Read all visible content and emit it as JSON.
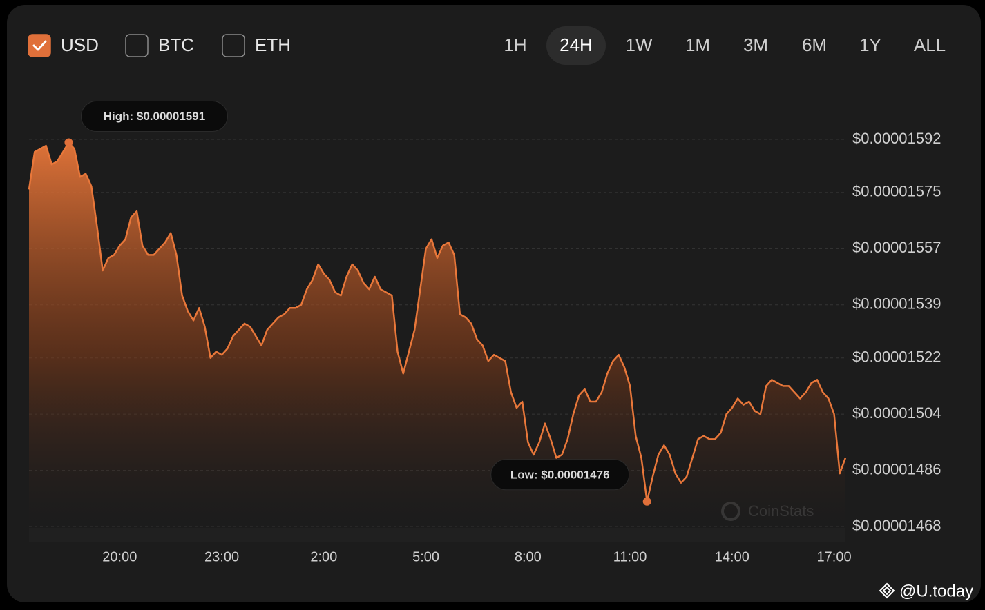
{
  "controls": {
    "currencies": [
      {
        "label": "USD",
        "checked": true
      },
      {
        "label": "BTC",
        "checked": false
      },
      {
        "label": "ETH",
        "checked": false
      }
    ],
    "ranges": [
      {
        "label": "1H",
        "selected": false
      },
      {
        "label": "24H",
        "selected": true
      },
      {
        "label": "1W",
        "selected": false
      },
      {
        "label": "1M",
        "selected": false
      },
      {
        "label": "3M",
        "selected": false
      },
      {
        "label": "6M",
        "selected": false
      },
      {
        "label": "1Y",
        "selected": false
      },
      {
        "label": "ALL",
        "selected": false
      }
    ]
  },
  "watermark": "CoinStats",
  "source": "@U.today",
  "chart_data": {
    "type": "area",
    "color": "#e8773a",
    "high_label": "High: $0.00001591",
    "low_label": "Low: $0.00001476",
    "categories": [
      null,
      null,
      null,
      null,
      null,
      null,
      null,
      null,
      null,
      null,
      null,
      null,
      null,
      null,
      null,
      null,
      "20:00",
      null,
      null,
      null,
      null,
      null,
      null,
      null,
      null,
      null,
      null,
      null,
      null,
      null,
      null,
      null,
      null,
      null,
      "23:00",
      null,
      null,
      null,
      null,
      null,
      null,
      null,
      null,
      null,
      null,
      null,
      null,
      null,
      null,
      null,
      null,
      null,
      "2:00",
      null,
      null,
      null,
      null,
      null,
      null,
      null,
      null,
      null,
      null,
      null,
      null,
      null,
      null,
      null,
      null,
      null,
      "5:00",
      null,
      null,
      null,
      null,
      null,
      null,
      null,
      null,
      null,
      null,
      null,
      null,
      null,
      null,
      null,
      null,
      null,
      "8:00",
      null,
      null,
      null,
      null,
      null,
      null,
      null,
      null,
      null,
      null,
      null,
      null,
      null,
      null,
      null,
      null,
      null,
      "11:00",
      null,
      null,
      null,
      null,
      null,
      null,
      null,
      null,
      null,
      null,
      null,
      null,
      null,
      null,
      null,
      null,
      null,
      "14:00",
      null,
      null,
      null,
      null,
      null,
      null,
      null,
      null,
      null,
      null,
      null,
      null,
      null,
      null,
      null,
      null,
      null,
      "17:00",
      null,
      null
    ],
    "values": [
      1.576e-05,
      1.588e-05,
      1.589e-05,
      1.59e-05,
      1.584e-05,
      1.585e-05,
      1.588e-05,
      1.591e-05,
      1.589e-05,
      1.58e-05,
      1.581e-05,
      1.577e-05,
      1.564e-05,
      1.55e-05,
      1.554e-05,
      1.555e-05,
      1.558e-05,
      1.56e-05,
      1.567e-05,
      1.569e-05,
      1.558e-05,
      1.555e-05,
      1.555e-05,
      1.557e-05,
      1.559e-05,
      1.562e-05,
      1.555e-05,
      1.542e-05,
      1.537e-05,
      1.534e-05,
      1.538e-05,
      1.532e-05,
      1.522e-05,
      1.524e-05,
      1.523e-05,
      1.525e-05,
      1.529e-05,
      1.531e-05,
      1.533e-05,
      1.532e-05,
      1.529e-05,
      1.526e-05,
      1.531e-05,
      1.533e-05,
      1.535e-05,
      1.536e-05,
      1.538e-05,
      1.538e-05,
      1.539e-05,
      1.544e-05,
      1.547e-05,
      1.552e-05,
      1.549e-05,
      1.547e-05,
      1.543e-05,
      1.542e-05,
      1.548e-05,
      1.552e-05,
      1.55e-05,
      1.546e-05,
      1.544e-05,
      1.548e-05,
      1.544e-05,
      1.543e-05,
      1.542e-05,
      1.524e-05,
      1.517e-05,
      1.524e-05,
      1.531e-05,
      1.544e-05,
      1.557e-05,
      1.56e-05,
      1.554e-05,
      1.558e-05,
      1.559e-05,
      1.555e-05,
      1.536e-05,
      1.535e-05,
      1.533e-05,
      1.528e-05,
      1.526e-05,
      1.521e-05,
      1.523e-05,
      1.522e-05,
      1.521e-05,
      1.511e-05,
      1.506e-05,
      1.508e-05,
      1.495e-05,
      1.491e-05,
      1.495e-05,
      1.501e-05,
      1.496e-05,
      1.49e-05,
      1.491e-05,
      1.496e-05,
      1.504e-05,
      1.51e-05,
      1.512e-05,
      1.508e-05,
      1.508e-05,
      1.511e-05,
      1.517e-05,
      1.521e-05,
      1.523e-05,
      1.519e-05,
      1.513e-05,
      1.497e-05,
      1.49e-05,
      1.476e-05,
      1.484e-05,
      1.491e-05,
      1.494e-05,
      1.491e-05,
      1.485e-05,
      1.482e-05,
      1.484e-05,
      1.49e-05,
      1.496e-05,
      1.497e-05,
      1.496e-05,
      1.496e-05,
      1.498e-05,
      1.504e-05,
      1.506e-05,
      1.509e-05,
      1.507e-05,
      1.508e-05,
      1.505e-05,
      1.504e-05,
      1.513e-05,
      1.515e-05,
      1.514e-05,
      1.513e-05,
      1.513e-05,
      1.511e-05,
      1.509e-05,
      1.511e-05,
      1.514e-05,
      1.515e-05,
      1.511e-05,
      1.509e-05,
      1.504e-05,
      1.485e-05,
      1.49e-05
    ],
    "ylim": [
      1.468e-05,
      1.592e-05
    ],
    "yticks": [
      {
        "value": 1.468e-05,
        "label": "$0.00001468"
      },
      {
        "value": 1.486e-05,
        "label": "$0.00001486"
      },
      {
        "value": 1.504e-05,
        "label": "$0.00001504"
      },
      {
        "value": 1.522e-05,
        "label": "$0.00001522"
      },
      {
        "value": 1.539e-05,
        "label": "$0.00001539"
      },
      {
        "value": 1.557e-05,
        "label": "$0.00001557"
      },
      {
        "value": 1.575e-05,
        "label": "$0.00001575"
      },
      {
        "value": 1.592e-05,
        "label": "$0.00001592"
      }
    ],
    "grid": true
  }
}
